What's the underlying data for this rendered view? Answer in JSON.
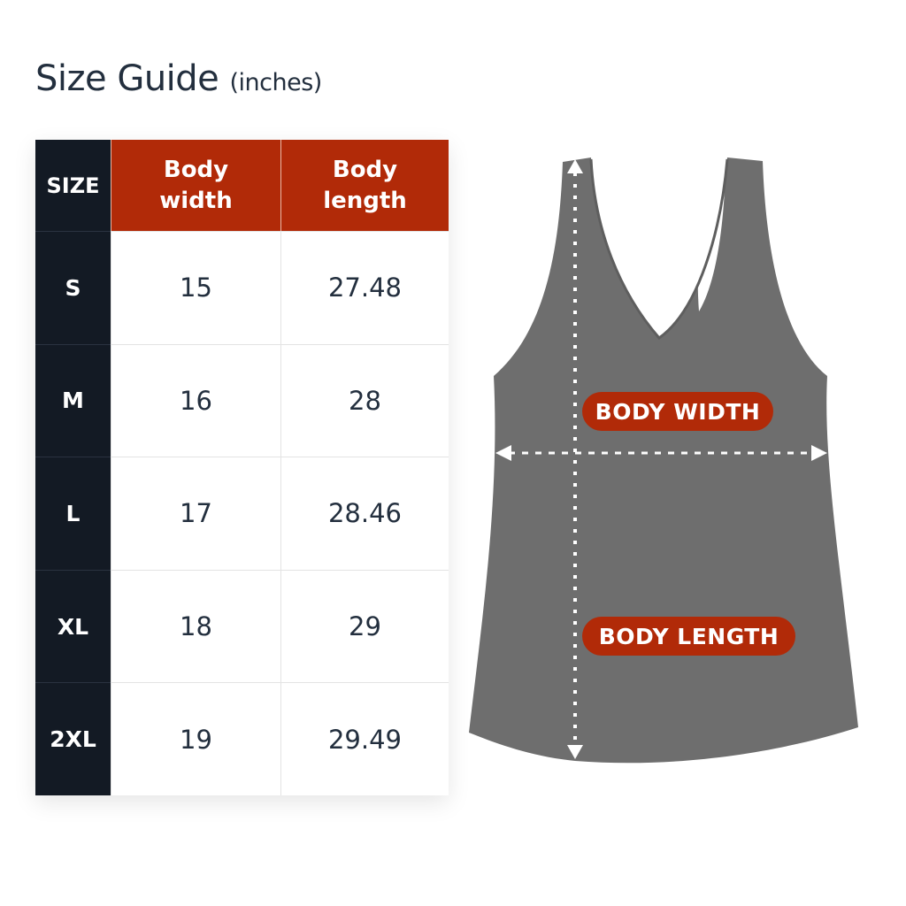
{
  "title": {
    "main": "Size Guide",
    "unit": "(inches)"
  },
  "table": {
    "headers": [
      "SIZE",
      "Body width",
      "Body length"
    ],
    "rows": [
      {
        "size": "S",
        "width": "15",
        "length": "27.48"
      },
      {
        "size": "M",
        "width": "16",
        "length": "28"
      },
      {
        "size": "L",
        "width": "17",
        "length": "28.46"
      },
      {
        "size": "XL",
        "width": "18",
        "length": "29"
      },
      {
        "size": "2XL",
        "width": "19",
        "length": "29.49"
      }
    ]
  },
  "diagram": {
    "width_label": "BODY WIDTH",
    "length_label": "BODY LENGTH",
    "garment": "racerback tank top",
    "garment_color": "#6e6e6e"
  },
  "colors": {
    "header_accent": "#b12a08",
    "size_column": "#131a24"
  }
}
